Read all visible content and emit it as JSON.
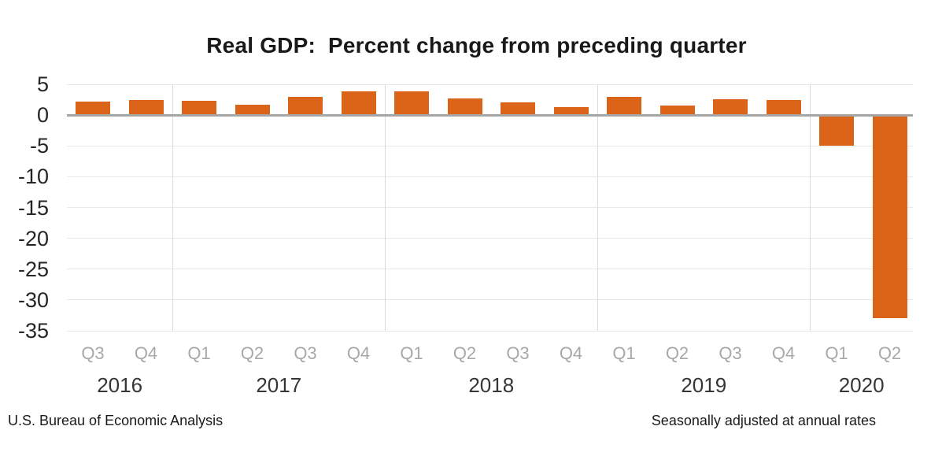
{
  "title": "Real GDP:  Percent change from preceding quarter",
  "footer": {
    "source": "U.S. Bureau of Economic Analysis",
    "note": "Seasonally adjusted at annual rates"
  },
  "colors": {
    "bar": "#DC6418",
    "zero_line": "#A6A6A6",
    "gridline": "#E9E9E9",
    "separator": "#DBDBDB",
    "quarter_label": "#A8A8A8",
    "year_label": "#363636",
    "axis_label": "#262626",
    "title_text": "#191919",
    "background": "#FFFFFF"
  },
  "chart_data": {
    "type": "bar",
    "title": "Real GDP:  Percent change from preceding quarter",
    "xlabel": "",
    "ylabel": "",
    "ylim": [
      -35,
      5
    ],
    "ytick_step": 5,
    "yticks": [
      5,
      0,
      -5,
      -10,
      -15,
      -20,
      -25,
      -30,
      -35
    ],
    "grid": true,
    "legend": false,
    "units": "percent",
    "groups": [
      {
        "year": "2016",
        "quarters": [
          "Q3",
          "Q4"
        ],
        "values": [
          2.2,
          2.5
        ]
      },
      {
        "year": "2017",
        "quarters": [
          "Q1",
          "Q2",
          "Q3",
          "Q4"
        ],
        "values": [
          2.3,
          1.7,
          2.9,
          3.9
        ]
      },
      {
        "year": "2018",
        "quarters": [
          "Q1",
          "Q2",
          "Q3",
          "Q4"
        ],
        "values": [
          3.8,
          2.7,
          2.1,
          1.3
        ]
      },
      {
        "year": "2019",
        "quarters": [
          "Q1",
          "Q2",
          "Q3",
          "Q4"
        ],
        "values": [
          2.9,
          1.5,
          2.6,
          2.4
        ]
      },
      {
        "year": "2020",
        "quarters": [
          "Q1",
          "Q2"
        ],
        "values": [
          -5.0,
          -32.9
        ]
      }
    ]
  }
}
